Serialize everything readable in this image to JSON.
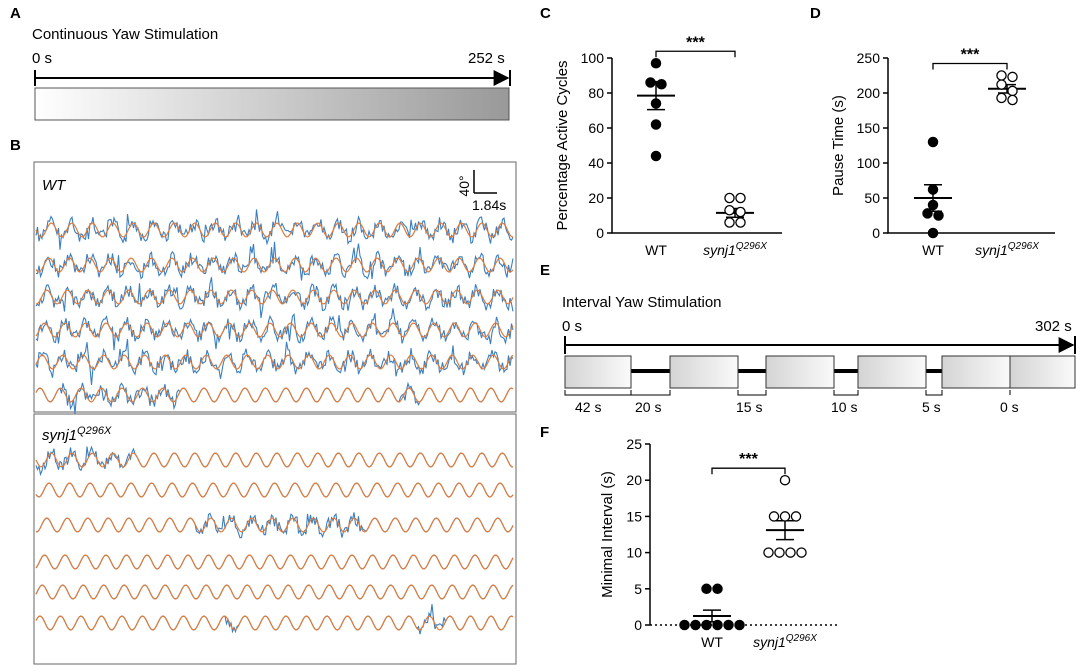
{
  "panels": {
    "a": "A",
    "b": "B",
    "c": "C",
    "d": "D",
    "e": "E",
    "f": "F"
  },
  "continuous": {
    "title": "Continuous Yaw Stimulation",
    "start": "0 s",
    "end": "252 s"
  },
  "traces": {
    "wt_label": "WT",
    "mut_label_base": "synj1",
    "mut_label_sup": "Q296X",
    "scale_angle": "40°",
    "scale_time": "1.84s",
    "colors": {
      "stimulus": "#e07b39",
      "eye": "#3a7fc1"
    }
  },
  "interval": {
    "title": "Interval Yaw Stimulation",
    "start": "0 s",
    "end": "302 s",
    "labels": [
      "42 s",
      "20 s",
      "15 s",
      "10 s",
      "5 s",
      "0 s"
    ]
  },
  "chart_data": [
    {
      "type": "scatter",
      "panel": "C",
      "ylabel": "Percentage Active Cycles",
      "categories": [
        "WT",
        "synj1Q296X"
      ],
      "ylim": [
        0,
        100
      ],
      "yticks": [
        "0",
        "20",
        "40",
        "60",
        "80",
        "100"
      ],
      "series": [
        {
          "name": "WT",
          "marker": "filled",
          "values": [
            97,
            86,
            85,
            74,
            62,
            44
          ],
          "mean": 78.5,
          "sem": 8
        },
        {
          "name": "synj1Q296X",
          "marker": "open",
          "values": [
            20,
            20,
            13,
            12,
            6,
            6
          ],
          "mean": 11.5,
          "sem": 2.5
        }
      ],
      "significance": "***"
    },
    {
      "type": "scatter",
      "panel": "D",
      "ylabel": "Pause Time (s)",
      "categories": [
        "WT",
        "synj1Q296X"
      ],
      "ylim": [
        0,
        250
      ],
      "yticks": [
        "0",
        "50",
        "100",
        "150",
        "200",
        "250"
      ],
      "series": [
        {
          "name": "WT",
          "marker": "filled",
          "values": [
            130,
            62,
            40,
            28,
            25,
            0
          ],
          "mean": 50,
          "sem": 19
        },
        {
          "name": "synj1Q296X",
          "marker": "open",
          "values": [
            225,
            223,
            212,
            203,
            193,
            190
          ],
          "mean": 206,
          "sem": 6
        }
      ],
      "significance": "***"
    },
    {
      "type": "scatter",
      "panel": "F",
      "ylabel": "Minimal Interval (s)",
      "categories": [
        "WT",
        "synj1Q296X"
      ],
      "ylim": [
        0,
        25
      ],
      "yticks": [
        "0",
        "5",
        "10",
        "15",
        "20",
        "25"
      ],
      "series": [
        {
          "name": "WT",
          "marker": "filled",
          "values": [
            5,
            5,
            0,
            0,
            0,
            0,
            0,
            0
          ],
          "mean": 1.25,
          "sem": 0.8
        },
        {
          "name": "synj1Q296X",
          "marker": "open",
          "values": [
            20,
            15,
            15,
            15,
            10,
            10,
            10,
            10
          ],
          "mean": 13.1,
          "sem": 1.3
        }
      ],
      "significance": "***"
    }
  ]
}
